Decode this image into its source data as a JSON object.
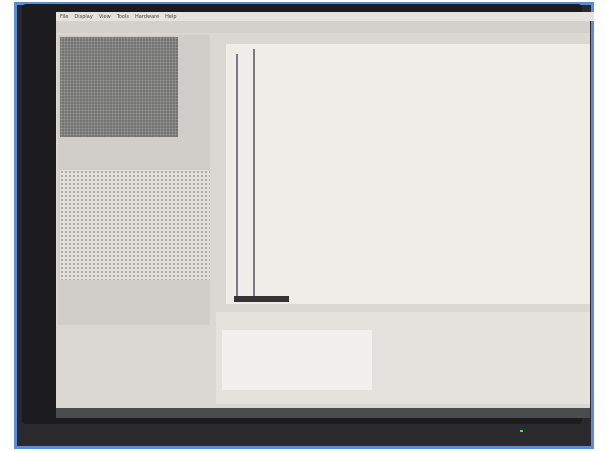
{
  "menu": [
    "File",
    "Display",
    "View",
    "Tools",
    "Hardware",
    "Help"
  ]
}
